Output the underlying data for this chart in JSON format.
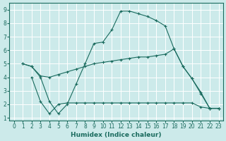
{
  "xlabel": "Humidex (Indice chaleur)",
  "background_color": "#cceaea",
  "grid_color": "#ffffff",
  "line_color": "#1a6b5e",
  "xlim": [
    -0.5,
    23.5
  ],
  "ylim": [
    0.8,
    9.5
  ],
  "xticks": [
    0,
    1,
    2,
    3,
    4,
    5,
    6,
    7,
    8,
    9,
    10,
    11,
    12,
    13,
    14,
    15,
    16,
    17,
    18,
    19,
    20,
    21,
    22,
    23
  ],
  "yticks": [
    1,
    2,
    3,
    4,
    5,
    6,
    7,
    8,
    9
  ],
  "series": [
    {
      "x": [
        1,
        2,
        3,
        4,
        5,
        6,
        7,
        8,
        9,
        10,
        11,
        12,
        13,
        14,
        15,
        16,
        17,
        18,
        19,
        20,
        21,
        22,
        23
      ],
      "y": [
        5.0,
        4.8,
        4.0,
        2.2,
        1.3,
        2.0,
        3.5,
        5.0,
        6.5,
        6.6,
        7.5,
        8.9,
        8.9,
        8.7,
        8.5,
        8.2,
        7.8,
        6.1,
        4.8,
        3.9,
        2.8,
        1.7,
        1.7
      ]
    },
    {
      "x": [
        1,
        2,
        3,
        4,
        5,
        6,
        7,
        8,
        9,
        10,
        11,
        12,
        13,
        14,
        15,
        16,
        17,
        18,
        19,
        20,
        21,
        22,
        23
      ],
      "y": [
        5.0,
        4.8,
        4.1,
        4.0,
        4.2,
        4.4,
        4.6,
        4.8,
        5.0,
        5.1,
        5.2,
        5.3,
        5.4,
        5.5,
        5.5,
        5.6,
        5.7,
        6.1,
        4.8,
        3.9,
        2.9,
        1.7,
        1.7
      ]
    },
    {
      "x": [
        2,
        3,
        4,
        5,
        6,
        7,
        8,
        9,
        10,
        11,
        12,
        13,
        14,
        15,
        16,
        17,
        18,
        19,
        20,
        21,
        22,
        23
      ],
      "y": [
        4.0,
        2.2,
        1.3,
        2.0,
        2.1,
        2.1,
        2.1,
        2.1,
        2.1,
        2.1,
        2.1,
        2.1,
        2.1,
        2.1,
        2.1,
        2.1,
        2.1,
        2.1,
        2.1,
        1.8,
        1.7,
        1.7
      ]
    }
  ]
}
